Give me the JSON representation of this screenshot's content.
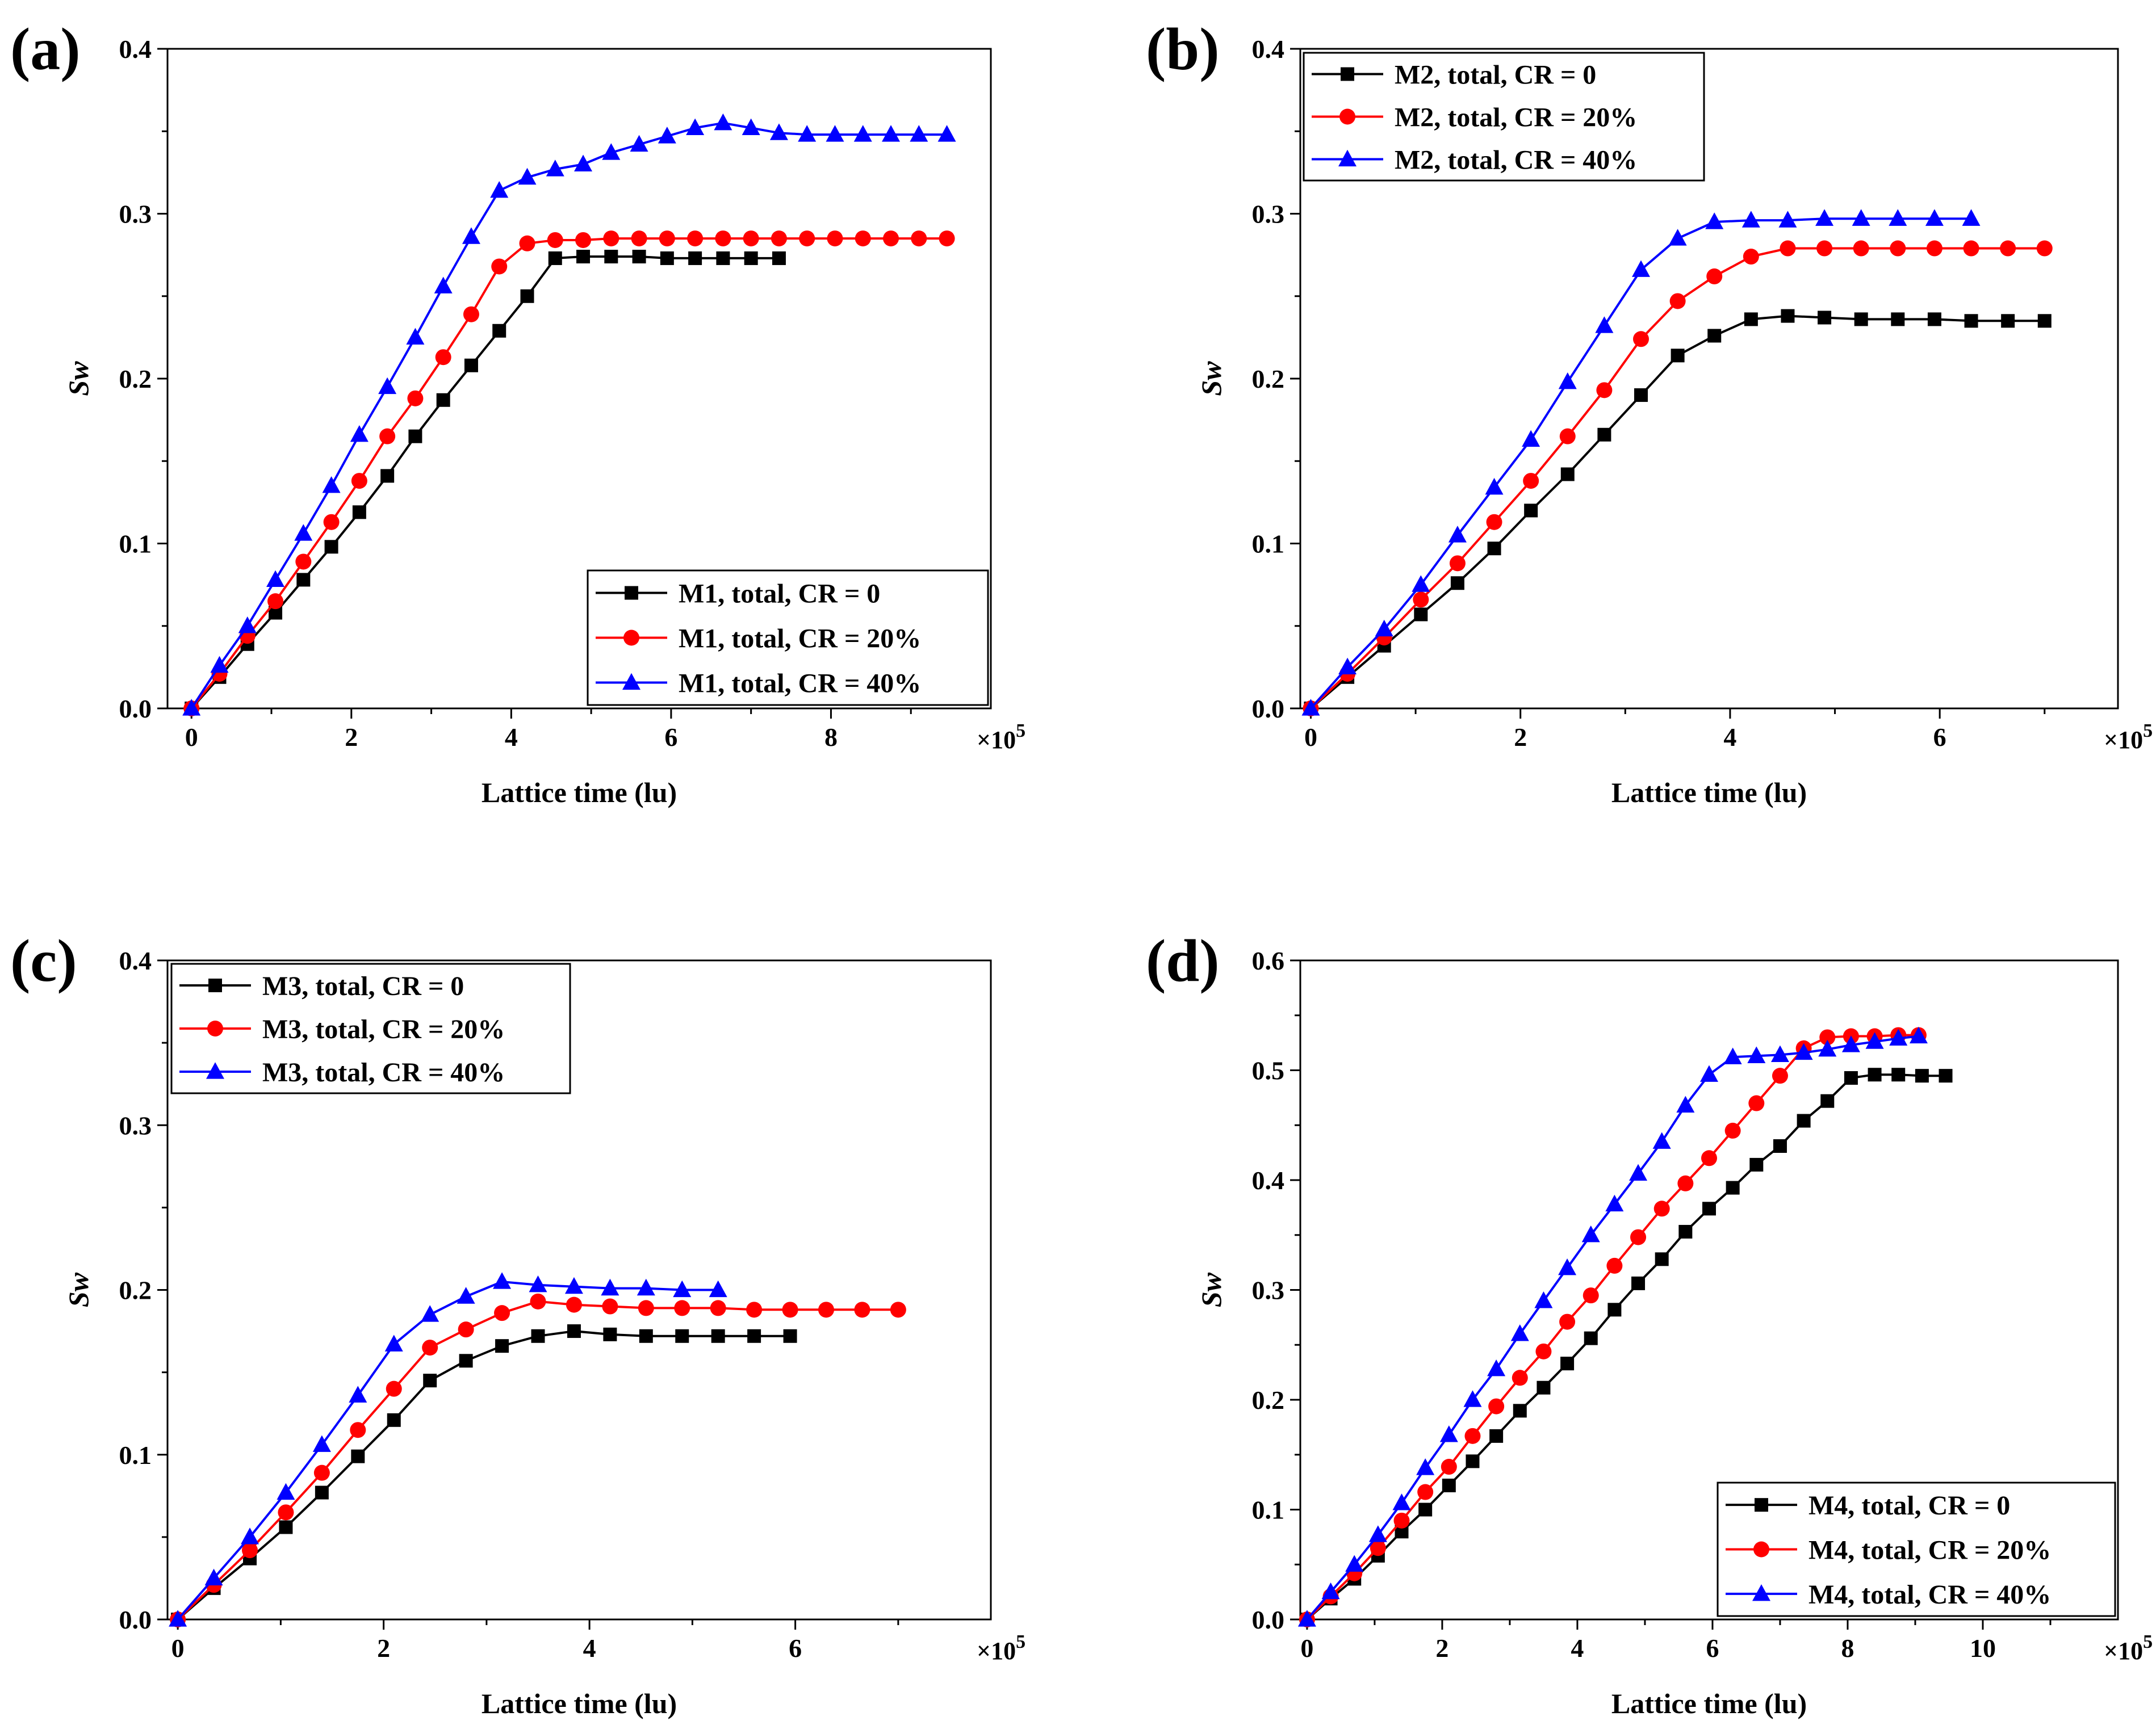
{
  "figure": {
    "multiplier_label": "×10",
    "multiplier_exp": "5"
  },
  "colors": {
    "black": "#000000",
    "red": "#ff0000",
    "blue": "#0000ff"
  },
  "chart_data": [
    {
      "type": "line",
      "panel": "(a)",
      "xlabel": "Lattice time (lu)",
      "ylabel": "Sw",
      "xlim": [
        -0.3,
        10.0
      ],
      "ylim": [
        0,
        0.4
      ],
      "xticks": [
        0,
        2,
        4,
        6,
        8
      ],
      "yticks": [
        0.0,
        0.1,
        0.2,
        0.3,
        0.4
      ],
      "xtick_labels": [
        "0",
        "2",
        "4",
        "6",
        "8"
      ],
      "ytick_labels": [
        "0.0",
        "0.1",
        "0.2",
        "0.3",
        "0.4"
      ],
      "legend_position": "bottom-right",
      "series": [
        {
          "name": "M1, total, CR = 0",
          "color": "black",
          "marker": "square",
          "x": [
            0,
            0.35,
            0.7,
            1.05,
            1.4,
            1.75,
            2.1,
            2.45,
            2.8,
            3.15,
            3.5,
            3.85,
            4.2,
            4.55,
            4.9,
            5.25,
            5.6,
            5.95,
            6.3,
            6.65,
            7.0,
            7.35
          ],
          "y": [
            0,
            0.019,
            0.039,
            0.058,
            0.078,
            0.098,
            0.119,
            0.141,
            0.165,
            0.187,
            0.208,
            0.229,
            0.25,
            0.273,
            0.274,
            0.274,
            0.274,
            0.273,
            0.273,
            0.273,
            0.273,
            0.273
          ]
        },
        {
          "name": "M1, total, CR = 20%",
          "color": "red",
          "marker": "circle",
          "x": [
            0,
            0.35,
            0.7,
            1.05,
            1.4,
            1.75,
            2.1,
            2.45,
            2.8,
            3.15,
            3.5,
            3.85,
            4.2,
            4.55,
            4.9,
            5.25,
            5.6,
            5.95,
            6.3,
            6.65,
            7.0,
            7.35,
            7.7,
            8.05,
            8.4,
            8.75,
            9.1,
            9.45
          ],
          "y": [
            0,
            0.021,
            0.044,
            0.065,
            0.089,
            0.113,
            0.138,
            0.165,
            0.188,
            0.213,
            0.239,
            0.268,
            0.282,
            0.284,
            0.284,
            0.285,
            0.285,
            0.285,
            0.285,
            0.285,
            0.285,
            0.285,
            0.285,
            0.285,
            0.285,
            0.285,
            0.285,
            0.285
          ]
        },
        {
          "name": "M1, total, CR = 40%",
          "color": "blue",
          "marker": "triangle",
          "x": [
            0,
            0.35,
            0.7,
            1.05,
            1.4,
            1.75,
            2.1,
            2.45,
            2.8,
            3.15,
            3.5,
            3.85,
            4.2,
            4.55,
            4.9,
            5.25,
            5.6,
            5.95,
            6.3,
            6.65,
            7.0,
            7.35,
            7.7,
            8.05,
            8.4,
            8.75,
            9.1,
            9.45
          ],
          "y": [
            0,
            0.026,
            0.05,
            0.078,
            0.106,
            0.135,
            0.166,
            0.195,
            0.225,
            0.256,
            0.286,
            0.314,
            0.322,
            0.327,
            0.33,
            0.337,
            0.342,
            0.347,
            0.352,
            0.355,
            0.352,
            0.349,
            0.348,
            0.348,
            0.348,
            0.348,
            0.348,
            0.348
          ]
        }
      ]
    },
    {
      "type": "line",
      "panel": "(b)",
      "xlabel": "Lattice time (lu)",
      "ylabel": "Sw",
      "xlim": [
        -0.1,
        7.7
      ],
      "ylim": [
        0,
        0.4
      ],
      "xticks": [
        0,
        2,
        4,
        6
      ],
      "yticks": [
        0.0,
        0.1,
        0.2,
        0.3,
        0.4
      ],
      "xtick_labels": [
        "0",
        "2",
        "4",
        "6"
      ],
      "ytick_labels": [
        "0.0",
        "0.1",
        "0.2",
        "0.3",
        "0.4"
      ],
      "legend_position": "top-left",
      "series": [
        {
          "name": "M2, total, CR = 0",
          "color": "black",
          "marker": "square",
          "x": [
            0,
            0.35,
            0.7,
            1.05,
            1.4,
            1.75,
            2.1,
            2.45,
            2.8,
            3.15,
            3.5,
            3.85,
            4.2,
            4.55,
            4.9,
            5.25,
            5.6,
            5.95,
            6.3,
            6.65,
            7.0
          ],
          "y": [
            0,
            0.019,
            0.038,
            0.057,
            0.076,
            0.097,
            0.12,
            0.142,
            0.166,
            0.19,
            0.214,
            0.226,
            0.236,
            0.238,
            0.237,
            0.236,
            0.236,
            0.236,
            0.235,
            0.235,
            0.235
          ]
        },
        {
          "name": "M2, total, CR = 20%",
          "color": "red",
          "marker": "circle",
          "x": [
            0,
            0.35,
            0.7,
            1.05,
            1.4,
            1.75,
            2.1,
            2.45,
            2.8,
            3.15,
            3.5,
            3.85,
            4.2,
            4.55,
            4.9,
            5.25,
            5.6,
            5.95,
            6.3,
            6.65,
            7.0
          ],
          "y": [
            0,
            0.021,
            0.043,
            0.066,
            0.088,
            0.113,
            0.138,
            0.165,
            0.193,
            0.224,
            0.247,
            0.262,
            0.274,
            0.279,
            0.279,
            0.279,
            0.279,
            0.279,
            0.279,
            0.279,
            0.279
          ]
        },
        {
          "name": "M2, total, CR = 40%",
          "color": "blue",
          "marker": "triangle",
          "x": [
            0,
            0.35,
            0.7,
            1.05,
            1.4,
            1.75,
            2.1,
            2.45,
            2.8,
            3.15,
            3.5,
            3.85,
            4.2,
            4.55,
            4.9,
            5.25,
            5.6,
            5.95,
            6.3
          ],
          "y": [
            0,
            0.025,
            0.048,
            0.075,
            0.105,
            0.134,
            0.163,
            0.198,
            0.232,
            0.266,
            0.285,
            0.295,
            0.296,
            0.296,
            0.297,
            0.297,
            0.297,
            0.297,
            0.297
          ]
        }
      ]
    },
    {
      "type": "line",
      "panel": "(c)",
      "xlabel": "Lattice time (lu)",
      "ylabel": "Sw",
      "xlim": [
        -0.1,
        7.9
      ],
      "ylim": [
        0,
        0.4
      ],
      "xticks": [
        0,
        2,
        4,
        6
      ],
      "yticks": [
        0.0,
        0.1,
        0.2,
        0.3,
        0.4
      ],
      "xtick_labels": [
        "0",
        "2",
        "4",
        "6"
      ],
      "ytick_labels": [
        "0.0",
        "0.1",
        "0.2",
        "0.3",
        "0.4"
      ],
      "legend_position": "top-left",
      "series": [
        {
          "name": "M3, total, CR = 0",
          "color": "black",
          "marker": "square",
          "x": [
            0,
            0.35,
            0.7,
            1.05,
            1.4,
            1.75,
            2.1,
            2.45,
            2.8,
            3.15,
            3.5,
            3.85,
            4.2,
            4.55,
            4.9,
            5.25,
            5.6,
            5.95
          ],
          "y": [
            0,
            0.019,
            0.037,
            0.056,
            0.077,
            0.099,
            0.121,
            0.145,
            0.157,
            0.166,
            0.172,
            0.175,
            0.173,
            0.172,
            0.172,
            0.172,
            0.172,
            0.172
          ]
        },
        {
          "name": "M3, total, CR = 20%",
          "color": "red",
          "marker": "circle",
          "x": [
            0,
            0.35,
            0.7,
            1.05,
            1.4,
            1.75,
            2.1,
            2.45,
            2.8,
            3.15,
            3.5,
            3.85,
            4.2,
            4.55,
            4.9,
            5.25,
            5.6,
            5.95,
            6.3,
            6.65,
            7.0
          ],
          "y": [
            0,
            0.021,
            0.042,
            0.065,
            0.089,
            0.115,
            0.14,
            0.165,
            0.176,
            0.186,
            0.193,
            0.191,
            0.19,
            0.189,
            0.189,
            0.189,
            0.188,
            0.188,
            0.188,
            0.188,
            0.188
          ]
        },
        {
          "name": "M3, total, CR = 40%",
          "color": "blue",
          "marker": "triangle",
          "x": [
            0,
            0.35,
            0.7,
            1.05,
            1.4,
            1.75,
            2.1,
            2.45,
            2.8,
            3.15,
            3.5,
            3.85,
            4.2,
            4.55,
            4.9,
            5.25
          ],
          "y": [
            0,
            0.025,
            0.05,
            0.077,
            0.106,
            0.136,
            0.167,
            0.185,
            0.196,
            0.205,
            0.203,
            0.202,
            0.201,
            0.201,
            0.2,
            0.2
          ]
        }
      ]
    },
    {
      "type": "line",
      "panel": "(d)",
      "xlabel": "Lattice time (lu)",
      "ylabel": "Sw",
      "xlim": [
        -0.1,
        12.0
      ],
      "ylim": [
        0,
        0.6
      ],
      "xticks": [
        0,
        2,
        4,
        6,
        8,
        10
      ],
      "yticks": [
        0.0,
        0.1,
        0.2,
        0.3,
        0.4,
        0.5,
        0.6
      ],
      "xtick_labels": [
        "0",
        "2",
        "4",
        "6",
        "8",
        "10"
      ],
      "ytick_labels": [
        "0.0",
        "0.1",
        "0.2",
        "0.3",
        "0.4",
        "0.5",
        "0.6"
      ],
      "legend_position": "bottom-right",
      "series": [
        {
          "name": "M4, total, CR = 0",
          "color": "black",
          "marker": "square",
          "x": [
            0,
            0.35,
            0.7,
            1.05,
            1.4,
            1.75,
            2.1,
            2.45,
            2.8,
            3.15,
            3.5,
            3.85,
            4.2,
            4.55,
            4.9,
            5.25,
            5.6,
            5.95,
            6.3,
            6.65,
            7.0,
            7.35,
            7.7,
            8.05,
            8.4,
            8.75,
            9.1,
            9.45
          ],
          "y": [
            0,
            0.019,
            0.037,
            0.058,
            0.08,
            0.1,
            0.122,
            0.144,
            0.167,
            0.19,
            0.211,
            0.233,
            0.256,
            0.282,
            0.306,
            0.328,
            0.353,
            0.374,
            0.393,
            0.414,
            0.431,
            0.454,
            0.472,
            0.493,
            0.496,
            0.496,
            0.495,
            0.495
          ]
        },
        {
          "name": "M4, total, CR = 20%",
          "color": "red",
          "marker": "circle",
          "x": [
            0,
            0.35,
            0.7,
            1.05,
            1.4,
            1.75,
            2.1,
            2.45,
            2.8,
            3.15,
            3.5,
            3.85,
            4.2,
            4.55,
            4.9,
            5.25,
            5.6,
            5.95,
            6.3,
            6.65,
            7.0,
            7.35,
            7.7,
            8.05,
            8.4,
            8.75,
            9.05
          ],
          "y": [
            0,
            0.021,
            0.042,
            0.065,
            0.09,
            0.116,
            0.139,
            0.167,
            0.194,
            0.22,
            0.244,
            0.271,
            0.295,
            0.322,
            0.348,
            0.374,
            0.397,
            0.42,
            0.445,
            0.47,
            0.495,
            0.52,
            0.53,
            0.531,
            0.531,
            0.532,
            0.532
          ]
        },
        {
          "name": "M4, total, CR = 40%",
          "color": "blue",
          "marker": "triangle",
          "x": [
            0,
            0.35,
            0.7,
            1.05,
            1.4,
            1.75,
            2.1,
            2.45,
            2.8,
            3.15,
            3.5,
            3.85,
            4.2,
            4.55,
            4.9,
            5.25,
            5.6,
            5.95,
            6.3,
            6.65,
            7.0,
            7.35,
            7.7,
            8.05,
            8.4,
            8.75,
            9.05
          ],
          "y": [
            0,
            0.025,
            0.05,
            0.077,
            0.106,
            0.138,
            0.168,
            0.2,
            0.228,
            0.26,
            0.29,
            0.32,
            0.35,
            0.378,
            0.406,
            0.435,
            0.468,
            0.496,
            0.512,
            0.513,
            0.514,
            0.516,
            0.519,
            0.523,
            0.526,
            0.529,
            0.531
          ]
        }
      ]
    }
  ]
}
